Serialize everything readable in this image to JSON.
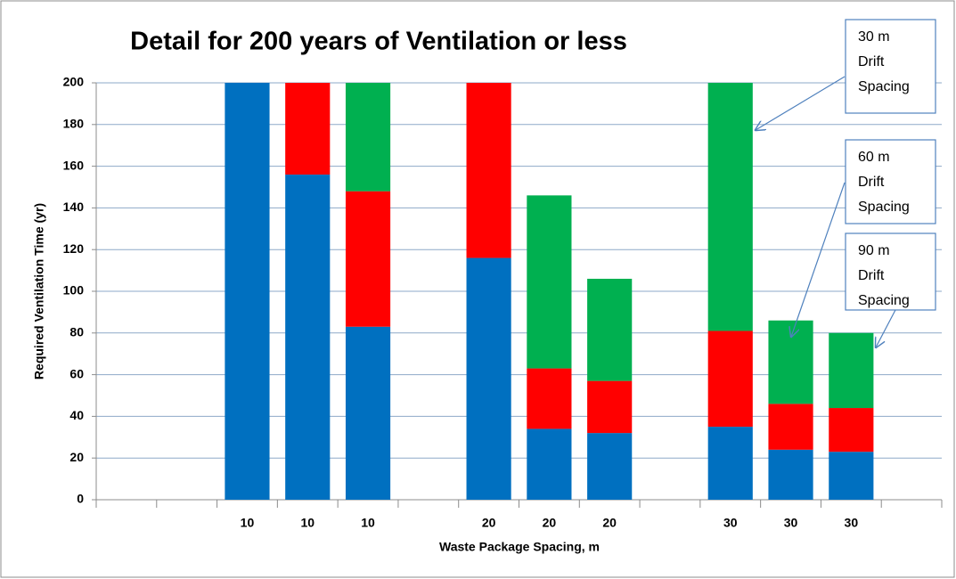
{
  "chart_data": {
    "type": "stacked_bar",
    "title": "Detail for 200 years of Ventilation or less",
    "x_label": "Waste Package Spacing, m",
    "y_label": "Required Ventilation Time (yr)",
    "categories": [
      null,
      null,
      "10",
      "10",
      "10",
      null,
      "20",
      "20",
      "20",
      null,
      "30",
      "30",
      "30",
      null
    ],
    "series": [
      {
        "color": "#0070c0",
        "values": [
          null,
          null,
          200,
          156,
          83,
          null,
          116,
          34,
          32,
          null,
          35,
          24,
          23,
          null
        ]
      },
      {
        "color": "#ff0000",
        "values": [
          null,
          null,
          null,
          44,
          65,
          null,
          84,
          29,
          25,
          null,
          46,
          22,
          21,
          null
        ]
      },
      {
        "color": "#00b050",
        "values": [
          null,
          null,
          null,
          null,
          52,
          null,
          null,
          83,
          49,
          null,
          119,
          40,
          36,
          null
        ]
      }
    ],
    "ylim": [
      0,
      200
    ],
    "yticks": [
      0,
      20,
      40,
      60,
      80,
      100,
      120,
      140,
      160,
      180,
      200
    ],
    "grid": true,
    "annotations": [
      {
        "lines": [
          "30 m",
          "Drift",
          "Spacing"
        ]
      },
      {
        "lines": [
          "60 m",
          "Drift",
          "Spacing"
        ]
      },
      {
        "lines": [
          "90 m",
          "Drift",
          "Spacing"
        ]
      }
    ]
  }
}
